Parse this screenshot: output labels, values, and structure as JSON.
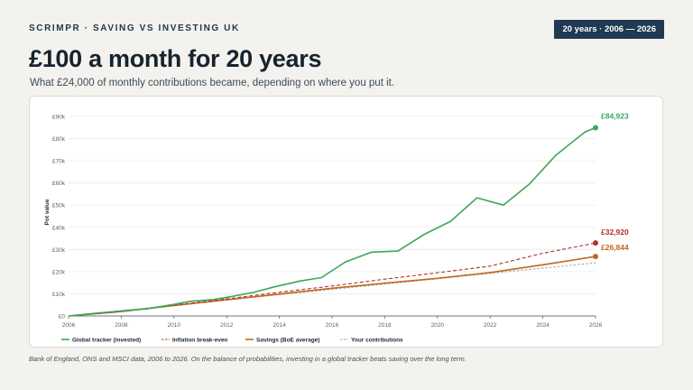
{
  "header": {
    "brand": "SCRIMPR · SAVING VS INVESTING UK",
    "badge": "20 years · 2006 — 2026",
    "title": "£100 a month for 20 years",
    "subtitle": "What £24,000 of monthly contributions became, depending on where you put it."
  },
  "footnote": "Bank of England, ONS and MSCI data, 2006 to 2026. On the balance of probabilities, investing in a global tracker beats saving over the long term.",
  "chart_data": {
    "type": "line",
    "ylabel": "Pot value",
    "xlabel": "",
    "xlim": [
      2006,
      2026
    ],
    "ylim": [
      0,
      90000
    ],
    "xticks": [
      2006,
      2008,
      2010,
      2012,
      2014,
      2016,
      2018,
      2020,
      2022,
      2024,
      2026
    ],
    "xtick_labels": [
      "2006",
      "2008",
      "2010",
      "2012",
      "2014",
      "2016",
      "2018",
      "2020",
      "2022",
      "2024",
      "2026"
    ],
    "yticks": [
      0,
      10000,
      20000,
      30000,
      40000,
      50000,
      60000,
      70000,
      80000,
      90000
    ],
    "ytick_labels": [
      "£0",
      "£10k",
      "£20k",
      "£30k",
      "£40k",
      "£50k",
      "£60k",
      "£70k",
      "£80k",
      "£90k"
    ],
    "grid": true,
    "legend_position": "bottom-left",
    "series": [
      {
        "name": "Global tracker (invested)",
        "color": "#3aa75a",
        "style": "solid",
        "end_label": "£84,923",
        "points": [
          [
            2006,
            0
          ],
          [
            2007,
            1200
          ],
          [
            2008,
            2300
          ],
          [
            2009,
            3300
          ],
          [
            2010,
            5200
          ],
          [
            2010.6,
            6600
          ],
          [
            2011.5,
            7400
          ],
          [
            2012,
            8400
          ],
          [
            2013,
            10600
          ],
          [
            2013.8,
            13100
          ],
          [
            2014.8,
            15800
          ],
          [
            2015.6,
            17300
          ],
          [
            2016.5,
            24300
          ],
          [
            2017.5,
            28800
          ],
          [
            2018.5,
            29300
          ],
          [
            2019.5,
            36800
          ],
          [
            2020.5,
            42700
          ],
          [
            2021.5,
            53300
          ],
          [
            2022.5,
            50000
          ],
          [
            2023.5,
            59600
          ],
          [
            2024.5,
            72600
          ],
          [
            2025.6,
            83000
          ],
          [
            2026,
            84923
          ]
        ]
      },
      {
        "name": "Inflation break-even",
        "color": "#b52e2e",
        "style": "dashed",
        "end_label": "£32,920",
        "points": [
          [
            2006,
            0
          ],
          [
            2008,
            2000
          ],
          [
            2010,
            4900
          ],
          [
            2012,
            7700
          ],
          [
            2014,
            10700
          ],
          [
            2016,
            13500
          ],
          [
            2018,
            16600
          ],
          [
            2020,
            19500
          ],
          [
            2022,
            22500
          ],
          [
            2024,
            28300
          ],
          [
            2026,
            32920
          ]
        ]
      },
      {
        "name": "Savings (BoE average)",
        "color": "#c2671f",
        "style": "solid",
        "end_label": "£26,844",
        "points": [
          [
            2006,
            0
          ],
          [
            2008,
            2000
          ],
          [
            2010,
            4700
          ],
          [
            2012,
            7300
          ],
          [
            2014,
            9900
          ],
          [
            2016,
            12500
          ],
          [
            2018,
            14800
          ],
          [
            2020,
            17000
          ],
          [
            2022,
            19600
          ],
          [
            2024,
            23100
          ],
          [
            2026,
            26844
          ]
        ]
      },
      {
        "name": "Your contributions",
        "color": "#a4abb2",
        "style": "dashed",
        "points": [
          [
            2006,
            0
          ],
          [
            2026,
            24000
          ]
        ]
      }
    ]
  }
}
